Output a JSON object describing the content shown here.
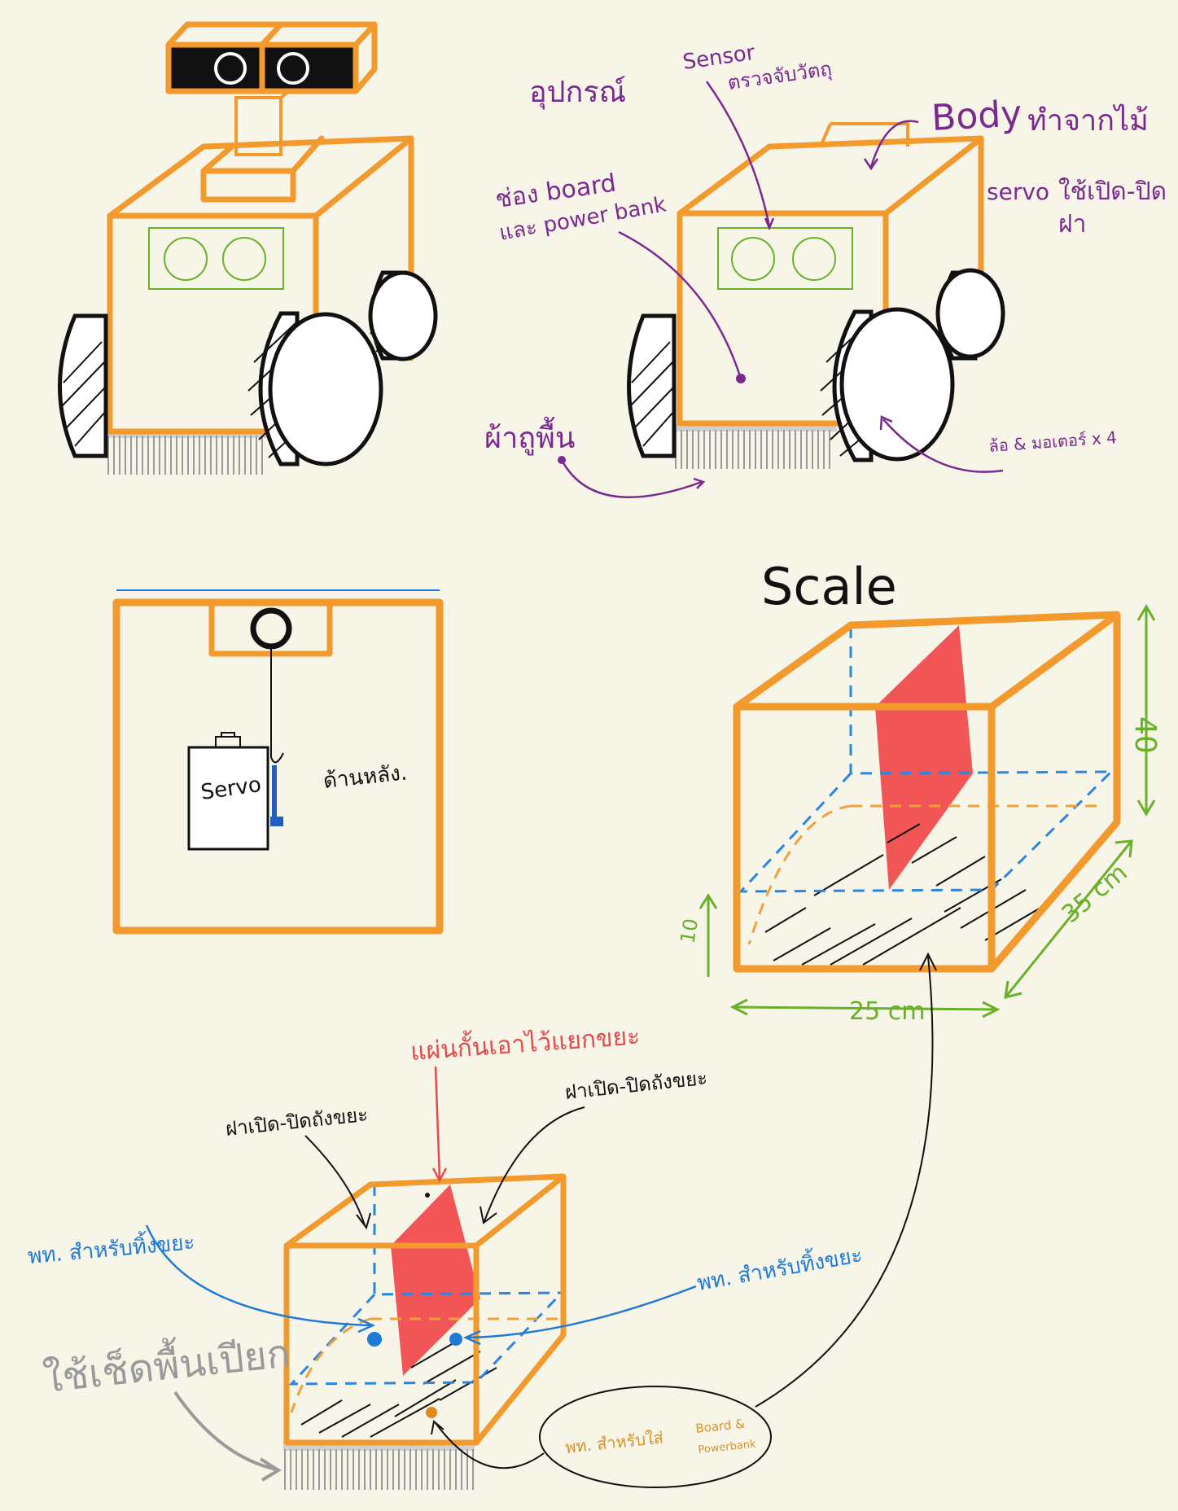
{
  "labels": {
    "equipment": "อุปกรณ์",
    "sensor": "Sensor",
    "sensor_desc": "ตรวจจับวัตถุ",
    "body": "Body",
    "body_desc": "ทำจากไม้",
    "board_line1": "ช่อง board",
    "board_line2": "และ power bank",
    "servo": "servo",
    "servo_desc_line1": "ใช้เปิด-ปิด",
    "servo_desc_line2": "ฝา",
    "mop": "ผ้าถูพื้น",
    "wheels": "ล้อ & มอเตอร์ x 4",
    "servo_box": "Servo",
    "back_side": "ด้านหลัง.",
    "scale_title": "Scale",
    "dim_height": "40",
    "dim_depth": "35 cm",
    "dim_width": "25 cm",
    "dim_small": "10",
    "divider": "แผ่นกั้นเอาไว้แยกขยะ",
    "lid_left": "ฝาเปิด-ปิดถังขยะ",
    "lid_right": "ฝาเปิด-ปิดถังขยะ",
    "trash_area_left": "พท. สำหรับทิ้งขยะ",
    "trash_area_right": "พท. สำหรับทิ้งขยะ",
    "wet_cloth": "ใช้เช็ดพื้นเปียก",
    "board_area": "พท. สำหรับใส่",
    "board_area_2": "Board &",
    "board_area_3": "Powerbank"
  },
  "colors": {
    "frame": "#f29a2e",
    "annotation_purple": "#7a2a8f",
    "annotation_blue": "#1f7ad6",
    "divider_red": "#f25555",
    "dimension_green": "#6ab02a"
  }
}
